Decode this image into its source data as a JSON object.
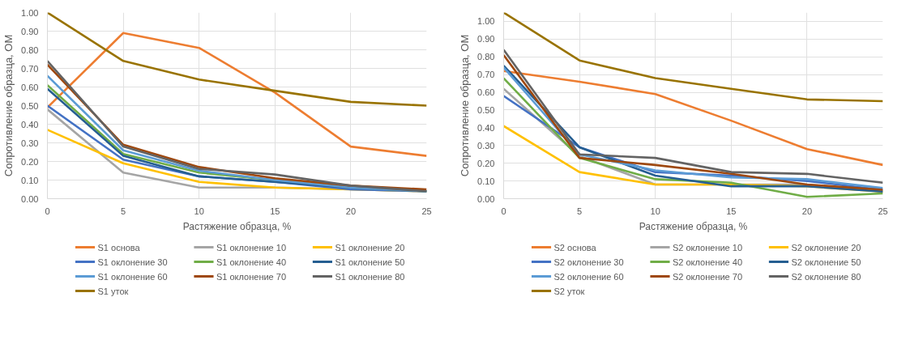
{
  "chart_data": [
    {
      "type": "line",
      "xlabel": "Растяжение образца, %",
      "ylabel": "Сопротивление образца, ОМ",
      "x": [
        0,
        5,
        10,
        15,
        20,
        25
      ],
      "xlim": [
        0,
        25
      ],
      "xticks": [
        0,
        5,
        10,
        15,
        20,
        25
      ],
      "ylim": [
        0,
        1.0
      ],
      "yticks": [
        {
          "value": 0,
          "label": "0.00"
        },
        {
          "value": 0.1,
          "label": "0.10"
        },
        {
          "value": 0.2,
          "label": "0.20"
        },
        {
          "value": 0.3,
          "label": "0.30"
        },
        {
          "value": 0.4,
          "label": "0.40"
        },
        {
          "value": 0.5,
          "label": "0.50"
        },
        {
          "value": 0.6,
          "label": "0.60"
        },
        {
          "value": 0.7,
          "label": "0.70"
        },
        {
          "value": 0.8,
          "label": "0.80"
        },
        {
          "value": 0.9,
          "label": "0.90"
        },
        {
          "value": 1.0,
          "label": "1.00"
        }
      ],
      "grid": true,
      "legend": "bottom",
      "marker": "none",
      "line_style": "solid",
      "series": [
        {
          "name": "S1 основа",
          "color": "#ed7d31",
          "values": [
            0.49,
            0.89,
            0.81,
            0.57,
            0.28,
            0.23
          ]
        },
        {
          "name": "S1 оклонение 10",
          "color": "#a5a5a5",
          "values": [
            0.48,
            0.14,
            0.06,
            0.06,
            0.05,
            0.04
          ]
        },
        {
          "name": "S1 оклонение 20",
          "color": "#ffc000",
          "values": [
            0.37,
            0.19,
            0.09,
            0.06,
            0.05,
            0.04
          ]
        },
        {
          "name": "S1 оклонение 30",
          "color": "#4472c4",
          "values": [
            0.5,
            0.21,
            0.12,
            0.09,
            0.05,
            0.04
          ]
        },
        {
          "name": "S1 оклонение 40",
          "color": "#70ad47",
          "values": [
            0.61,
            0.24,
            0.14,
            0.1,
            0.06,
            0.04
          ]
        },
        {
          "name": "S1 оклонение 50",
          "color": "#255e91",
          "values": [
            0.59,
            0.23,
            0.12,
            0.09,
            0.06,
            0.04
          ]
        },
        {
          "name": "S1 оклонение 60",
          "color": "#5b9bd5",
          "values": [
            0.66,
            0.26,
            0.15,
            0.1,
            0.06,
            0.04
          ]
        },
        {
          "name": "S1 оклонение 70",
          "color": "#9e480e",
          "values": [
            0.72,
            0.29,
            0.17,
            0.11,
            0.07,
            0.05
          ]
        },
        {
          "name": "S1 оклонение 80",
          "color": "#636363",
          "values": [
            0.74,
            0.28,
            0.16,
            0.13,
            0.07,
            0.04
          ]
        },
        {
          "name": "S1 уток",
          "color": "#997300",
          "values": [
            1.0,
            0.74,
            0.64,
            0.58,
            0.52,
            0.5
          ]
        }
      ]
    },
    {
      "type": "line",
      "xlabel": "Растяжение образца, %",
      "ylabel": "Сопротивление образца, ОМ",
      "x": [
        0,
        5,
        10,
        15,
        20,
        25
      ],
      "xlim": [
        0,
        25
      ],
      "xticks": [
        0,
        5,
        10,
        15,
        20,
        25
      ],
      "ylim": [
        0,
        1.05
      ],
      "yticks": [
        {
          "value": 0,
          "label": "0.00"
        },
        {
          "value": 0.1,
          "label": "0.10"
        },
        {
          "value": 0.2,
          "label": "0.20"
        },
        {
          "value": 0.3,
          "label": "0.30"
        },
        {
          "value": 0.4,
          "label": "0.40"
        },
        {
          "value": 0.5,
          "label": "0.50"
        },
        {
          "value": 0.6,
          "label": "0.60"
        },
        {
          "value": 0.7,
          "label": "0.70"
        },
        {
          "value": 0.8,
          "label": "0.80"
        },
        {
          "value": 0.9,
          "label": "0.90"
        },
        {
          "value": 1.0,
          "label": "1.00"
        }
      ],
      "grid": true,
      "legend": "bottom",
      "marker": "none",
      "line_style": "solid",
      "series": [
        {
          "name": "S2 основа",
          "color": "#ed7d31",
          "values": [
            0.72,
            0.66,
            0.59,
            0.44,
            0.28,
            0.19
          ]
        },
        {
          "name": "S2 оклонение 10",
          "color": "#a5a5a5",
          "values": [
            0.62,
            0.24,
            0.08,
            0.08,
            0.08,
            0.04
          ]
        },
        {
          "name": "S2 оклонение 20",
          "color": "#ffc000",
          "values": [
            0.41,
            0.15,
            0.08,
            0.08,
            0.07,
            0.04
          ]
        },
        {
          "name": "S2 оклонение 30",
          "color": "#4472c4",
          "values": [
            0.58,
            0.29,
            0.15,
            0.13,
            0.1,
            0.05
          ]
        },
        {
          "name": "S2 оклонение 40",
          "color": "#70ad47",
          "values": [
            0.68,
            0.23,
            0.11,
            0.09,
            0.01,
            0.03
          ]
        },
        {
          "name": "S2 оклонение 50",
          "color": "#255e91",
          "values": [
            0.75,
            0.29,
            0.13,
            0.07,
            0.07,
            0.04
          ]
        },
        {
          "name": "S2 оклонение 60",
          "color": "#5b9bd5",
          "values": [
            0.74,
            0.25,
            0.16,
            0.12,
            0.11,
            0.06
          ]
        },
        {
          "name": "S2 оклонение 70",
          "color": "#9e480e",
          "values": [
            0.81,
            0.23,
            0.19,
            0.14,
            0.08,
            0.05
          ]
        },
        {
          "name": "S2 оклонение 80",
          "color": "#636363",
          "values": [
            0.84,
            0.25,
            0.23,
            0.15,
            0.14,
            0.09
          ]
        },
        {
          "name": "S2 уток",
          "color": "#997300",
          "values": [
            1.05,
            0.78,
            0.68,
            0.62,
            0.56,
            0.55
          ]
        }
      ]
    }
  ]
}
